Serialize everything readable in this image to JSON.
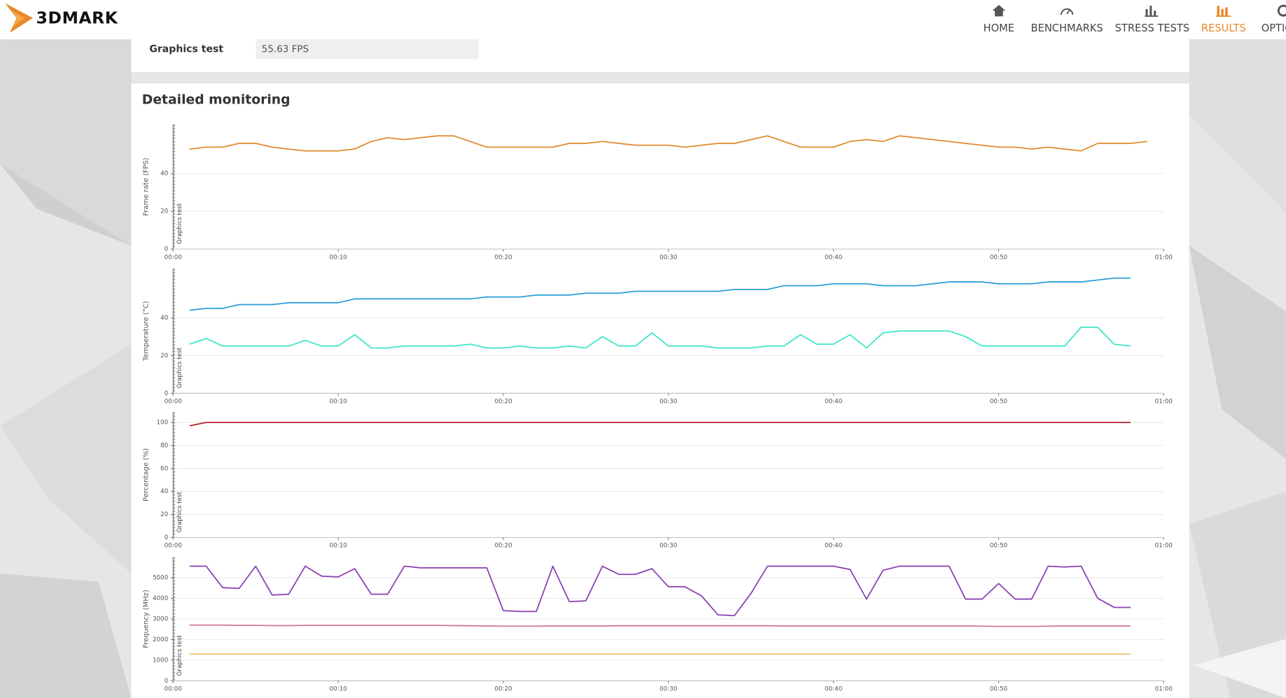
{
  "header": {
    "logo": "3DMARK",
    "nav": [
      "HOME",
      "BENCHMARKS",
      "STRESS TESTS",
      "RESULTS",
      "OPTIONS"
    ],
    "active": "RESULTS"
  },
  "result": {
    "label": "Graphics test",
    "value": "55.63 FPS"
  },
  "monitoring": {
    "title": "Detailed monitoring"
  },
  "chart_data": [
    {
      "type": "line",
      "ylabel": "Frame rate (FPS)",
      "marker": "Graphics test",
      "x": [
        1,
        2,
        3,
        4,
        5,
        6,
        7,
        8,
        9,
        10,
        11,
        12,
        13,
        14,
        15,
        16,
        17,
        18,
        19,
        20,
        21,
        22,
        23,
        24,
        25,
        26,
        27,
        28,
        29,
        30,
        31,
        32,
        33,
        34,
        35,
        36,
        37,
        38,
        39,
        40,
        41,
        42,
        43,
        44,
        45,
        46,
        47,
        48,
        49,
        50,
        51,
        52,
        53,
        54,
        55,
        56,
        57,
        58,
        59
      ],
      "xlim": [
        0,
        60
      ],
      "xticks": [
        {
          "value": 0,
          "label": "00:00"
        },
        {
          "value": 10,
          "label": "00:10"
        },
        {
          "value": 20,
          "label": "00:20"
        },
        {
          "value": 30,
          "label": "00:30"
        },
        {
          "value": 40,
          "label": "00:40"
        },
        {
          "value": 50,
          "label": "00:50"
        },
        {
          "value": 60,
          "label": "01:00"
        }
      ],
      "ylim": [
        0,
        66
      ],
      "yticks": [
        0,
        20,
        40
      ],
      "grid": true,
      "series": [
        {
          "color": "#e0892d",
          "values": [
            53,
            54,
            54,
            56,
            56,
            54,
            53,
            52,
            52,
            52,
            53,
            57,
            59,
            58,
            59,
            60,
            60,
            57,
            54,
            54,
            54,
            54,
            54,
            56,
            56,
            57,
            56,
            55,
            55,
            55,
            54,
            55,
            56,
            56,
            58,
            60,
            57,
            54,
            54,
            54,
            57,
            58,
            57,
            60,
            59,
            58,
            57,
            56,
            55,
            54,
            54,
            53,
            54,
            53,
            52,
            56,
            56,
            56,
            57
          ]
        }
      ]
    },
    {
      "type": "line",
      "ylabel": "Temperature (°C)",
      "marker": "Graphics test",
      "x": [
        1,
        2,
        3,
        4,
        5,
        6,
        7,
        8,
        9,
        10,
        11,
        12,
        13,
        14,
        15,
        16,
        17,
        18,
        19,
        20,
        21,
        22,
        23,
        24,
        25,
        26,
        27,
        28,
        29,
        30,
        31,
        32,
        33,
        34,
        35,
        36,
        37,
        38,
        39,
        40,
        41,
        42,
        43,
        44,
        45,
        46,
        47,
        48,
        49,
        50,
        51,
        52,
        53,
        54,
        55,
        56,
        57,
        58
      ],
      "xlim": [
        0,
        60
      ],
      "xticks": [
        {
          "value": 0,
          "label": "00:00"
        },
        {
          "value": 10,
          "label": "00:10"
        },
        {
          "value": 20,
          "label": "00:20"
        },
        {
          "value": 30,
          "label": "00:30"
        },
        {
          "value": 40,
          "label": "00:40"
        },
        {
          "value": 50,
          "label": "00:50"
        },
        {
          "value": 60,
          "label": "01:00"
        }
      ],
      "ylim": [
        0,
        66
      ],
      "yticks": [
        0,
        20,
        40
      ],
      "grid": true,
      "series": [
        {
          "color": "#2a9fd8",
          "values": [
            44,
            45,
            45,
            47,
            47,
            47,
            48,
            48,
            48,
            48,
            50,
            50,
            50,
            50,
            50,
            50,
            50,
            50,
            51,
            51,
            51,
            52,
            52,
            52,
            53,
            53,
            53,
            54,
            54,
            54,
            54,
            54,
            54,
            55,
            55,
            55,
            57,
            57,
            57,
            58,
            58,
            58,
            57,
            57,
            57,
            58,
            59,
            59,
            59,
            58,
            58,
            58,
            59,
            59,
            59,
            60,
            61,
            61
          ]
        },
        {
          "color": "#3ee6c8",
          "values": [
            26,
            29,
            25,
            25,
            25,
            25,
            25,
            28,
            25,
            25,
            31,
            24,
            24,
            25,
            25,
            25,
            25,
            26,
            24,
            24,
            25,
            24,
            24,
            25,
            24,
            30,
            25,
            25,
            32,
            25,
            25,
            25,
            24,
            24,
            24,
            25,
            25,
            31,
            26,
            26,
            31,
            24,
            32,
            33,
            33,
            33,
            33,
            30,
            25,
            25,
            25,
            25,
            25,
            25,
            35,
            35,
            26,
            25
          ]
        }
      ]
    },
    {
      "type": "line",
      "ylabel": "Percentage (%)",
      "marker": "Graphics test",
      "x": [
        1,
        2,
        3,
        4,
        5,
        6,
        7,
        8,
        9,
        10,
        11,
        12,
        13,
        14,
        15,
        16,
        17,
        18,
        19,
        20,
        21,
        22,
        23,
        24,
        25,
        26,
        27,
        28,
        29,
        30,
        31,
        32,
        33,
        34,
        35,
        36,
        37,
        38,
        39,
        40,
        41,
        42,
        43,
        44,
        45,
        46,
        47,
        48,
        49,
        50,
        51,
        52,
        53,
        54,
        55,
        56,
        57,
        58
      ],
      "xlim": [
        0,
        60
      ],
      "xticks": [
        {
          "value": 0,
          "label": "00:00"
        },
        {
          "value": 10,
          "label": "00:10"
        },
        {
          "value": 20,
          "label": "00:20"
        },
        {
          "value": 30,
          "label": "00:30"
        },
        {
          "value": 40,
          "label": "00:40"
        },
        {
          "value": 50,
          "label": "00:50"
        },
        {
          "value": 60,
          "label": "01:00"
        }
      ],
      "ylim": [
        0,
        109
      ],
      "yticks": [
        0,
        20,
        40,
        60,
        80,
        100
      ],
      "grid": true,
      "series": [
        {
          "color": "#b5232e",
          "values": [
            97,
            100,
            100,
            100,
            100,
            100,
            100,
            100,
            100,
            100,
            100,
            100,
            100,
            100,
            100,
            100,
            100,
            100,
            100,
            100,
            100,
            100,
            100,
            100,
            100,
            100,
            100,
            100,
            100,
            100,
            100,
            100,
            100,
            100,
            100,
            100,
            100,
            100,
            100,
            100,
            100,
            100,
            100,
            100,
            100,
            100,
            100,
            100,
            100,
            100,
            100,
            100,
            100,
            100,
            100,
            100,
            100,
            100
          ]
        }
      ]
    },
    {
      "type": "line",
      "ylabel": "Frequency (MHz)",
      "marker": "Graphics test",
      "x": [
        1,
        2,
        3,
        4,
        5,
        6,
        7,
        8,
        9,
        10,
        11,
        12,
        13,
        14,
        15,
        16,
        17,
        18,
        19,
        20,
        21,
        22,
        23,
        24,
        25,
        26,
        27,
        28,
        29,
        30,
        31,
        32,
        33,
        34,
        35,
        36,
        37,
        38,
        39,
        40,
        41,
        42,
        43,
        44,
        45,
        46,
        47,
        48,
        49,
        50,
        51,
        52,
        53,
        54,
        55,
        56,
        57,
        58
      ],
      "xlim": [
        0,
        60
      ],
      "xticks": [
        {
          "value": 0,
          "label": "00:00"
        },
        {
          "value": 10,
          "label": "00:10"
        },
        {
          "value": 20,
          "label": "00:20"
        },
        {
          "value": 30,
          "label": "00:30"
        },
        {
          "value": 40,
          "label": "00:40"
        },
        {
          "value": 50,
          "label": "00:50"
        },
        {
          "value": 60,
          "label": "01:00"
        }
      ],
      "ylim": [
        0,
        6000
      ],
      "yticks": [
        0,
        1000,
        2000,
        3000,
        4000,
        5000
      ],
      "grid": true,
      "series": [
        {
          "color": "#8a3fb0",
          "values": [
            5560,
            5560,
            4520,
            4480,
            5560,
            4160,
            4200,
            5560,
            5080,
            5040,
            5440,
            4200,
            4200,
            5560,
            5480,
            5480,
            5480,
            5480,
            5480,
            3400,
            3360,
            3360,
            5560,
            3840,
            3880,
            5560,
            5160,
            5160,
            5440,
            4560,
            4560,
            4120,
            3200,
            3160,
            4240,
            5560,
            5560,
            5560,
            5560,
            5560,
            5400,
            3960,
            5360,
            5560,
            5560,
            5560,
            5560,
            3960,
            3960,
            4720,
            3960,
            3960,
            5560,
            5520,
            5560,
            4000,
            3560,
            3560
          ]
        },
        {
          "color": "#d07896",
          "values": [
            2700,
            2700,
            2700,
            2690,
            2690,
            2680,
            2680,
            2690,
            2690,
            2690,
            2690,
            2690,
            2690,
            2690,
            2690,
            2690,
            2680,
            2670,
            2660,
            2650,
            2650,
            2650,
            2660,
            2660,
            2660,
            2660,
            2670,
            2670,
            2670,
            2670,
            2670,
            2670,
            2670,
            2670,
            2670,
            2670,
            2660,
            2660,
            2660,
            2660,
            2660,
            2660,
            2660,
            2660,
            2660,
            2660,
            2660,
            2660,
            2650,
            2640,
            2640,
            2640,
            2650,
            2660,
            2660,
            2660,
            2660,
            2660
          ]
        },
        {
          "color": "#f0c36a",
          "values": [
            1300,
            1300,
            1300,
            1300,
            1300,
            1300,
            1300,
            1300,
            1300,
            1300,
            1300,
            1300,
            1300,
            1300,
            1300,
            1300,
            1300,
            1300,
            1300,
            1300,
            1300,
            1300,
            1300,
            1300,
            1300,
            1300,
            1300,
            1300,
            1300,
            1300,
            1300,
            1300,
            1300,
            1300,
            1300,
            1300,
            1300,
            1300,
            1300,
            1300,
            1300,
            1300,
            1300,
            1300,
            1300,
            1300,
            1300,
            1300,
            1300,
            1300,
            1300,
            1300,
            1300,
            1300,
            1300,
            1300,
            1300,
            1300
          ]
        }
      ]
    }
  ]
}
